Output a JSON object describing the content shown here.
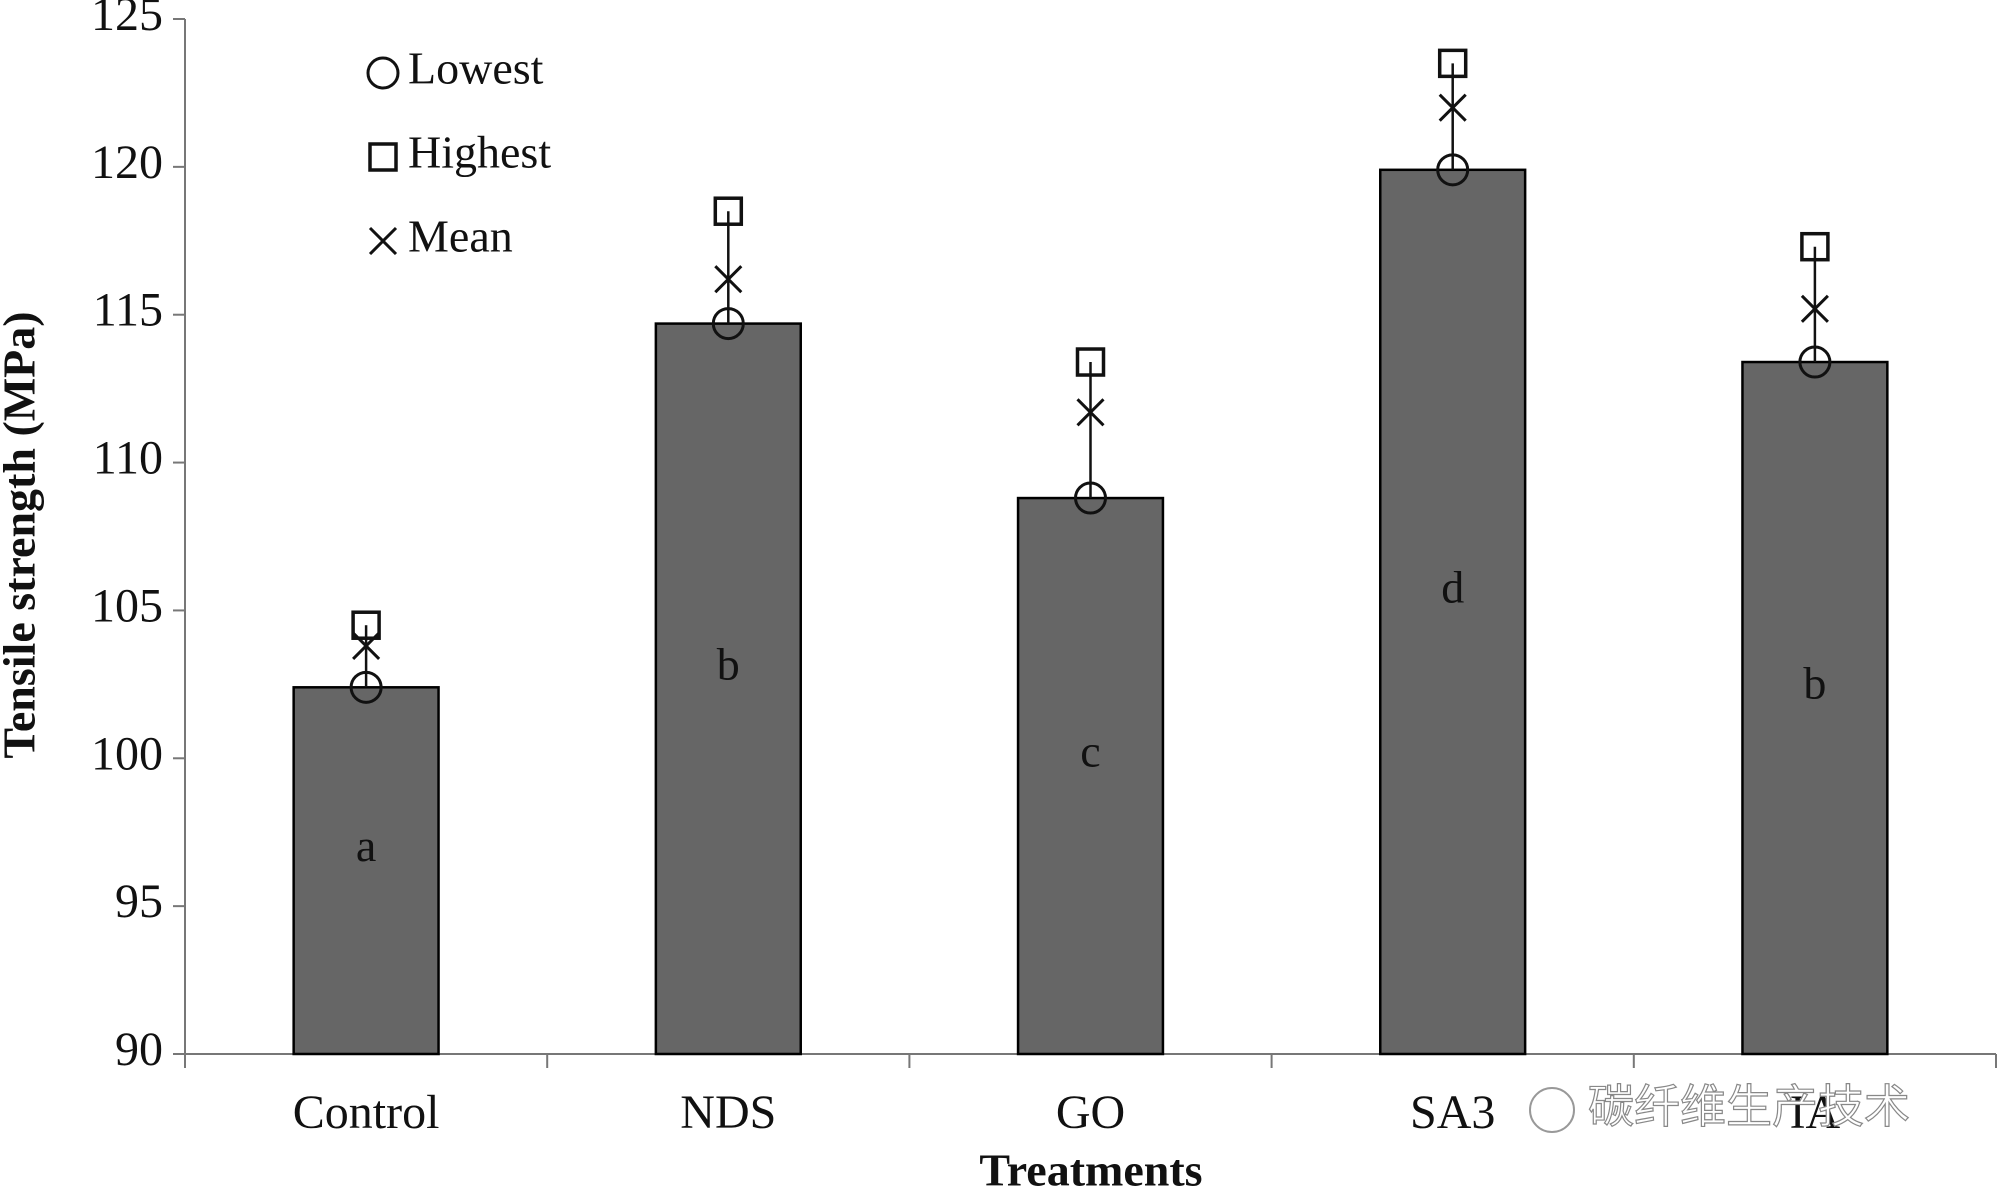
{
  "chart_data": {
    "type": "bar",
    "x_label": "Treatments",
    "y_label": "Tensile strength (MPa)",
    "categories": [
      "Control",
      "NDS",
      "GO",
      "SA3",
      "IA"
    ],
    "bar_color": "#666666",
    "series": [
      {
        "name": "Lowest",
        "marker": "circle",
        "values": [
          102.4,
          114.7,
          108.8,
          119.9,
          113.4
        ]
      },
      {
        "name": "Highest",
        "marker": "square",
        "values": [
          104.5,
          118.5,
          113.4,
          123.5,
          117.3
        ]
      },
      {
        "name": "Mean",
        "marker": "x",
        "values": [
          103.8,
          116.2,
          111.7,
          122.0,
          115.2
        ]
      }
    ],
    "annotations": [
      "a",
      "b",
      "c",
      "d",
      "b"
    ],
    "ylim": [
      90,
      125
    ],
    "yticks": [
      90,
      95,
      100,
      105,
      110,
      115,
      120,
      125
    ],
    "watermark": "碳纤维生产技术"
  }
}
